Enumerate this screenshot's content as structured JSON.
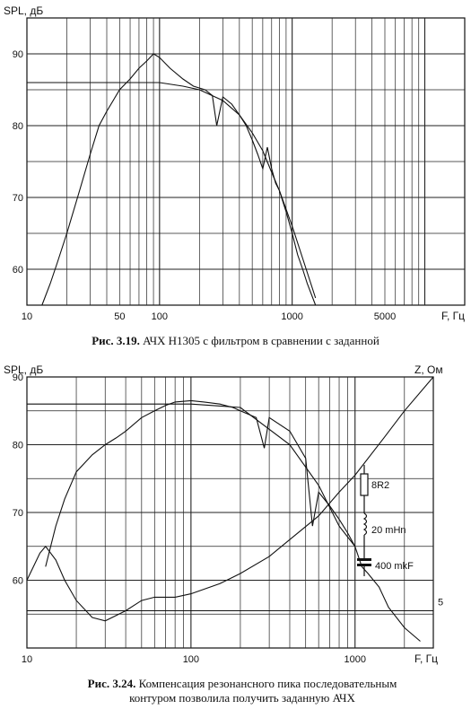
{
  "chart_data": [
    {
      "type": "line",
      "xscale": "log",
      "ylabel": "SPL, дБ",
      "xlabel": "F, Гц",
      "xlim": [
        10,
        20000
      ],
      "ylim": [
        55,
        95
      ],
      "x_ticks": [
        "10",
        "50",
        "100",
        "1000",
        "5000"
      ],
      "y_ticks": [
        "60",
        "70",
        "80",
        "90"
      ],
      "grid": true,
      "series": [
        {
          "x": [
            13,
            15,
            17,
            20,
            25,
            30,
            35,
            40,
            50,
            60,
            70,
            80,
            90,
            100,
            120,
            150,
            180,
            220,
            250,
            270,
            300,
            350,
            400,
            450,
            500,
            550,
            600,
            650,
            700,
            750,
            800,
            900,
            1000,
            1100,
            1200,
            1300,
            1500
          ],
          "y": [
            55,
            58,
            61,
            65,
            71,
            76,
            80,
            82,
            85,
            86.5,
            88,
            89,
            90,
            89.5,
            88,
            86.5,
            85.5,
            85,
            84.2,
            80,
            84,
            83,
            81.5,
            80,
            78,
            76,
            74,
            77,
            74,
            72,
            71,
            68,
            65,
            62,
            60,
            58,
            55
          ]
        },
        {
          "x": [
            10,
            20,
            50,
            100,
            150,
            200,
            300,
            400,
            500,
            600,
            700,
            800,
            1000,
            1200,
            1500
          ],
          "y": [
            86,
            86,
            86,
            86,
            85.5,
            85,
            83.5,
            81.5,
            79,
            76.5,
            73.5,
            71,
            66,
            61.5,
            56
          ]
        }
      ]
    },
    {
      "type": "line",
      "xscale": "log",
      "ylabel": "SPL, дБ",
      "xlabel": "F, Гц",
      "y2label": "Z, Ом",
      "xlim": [
        10,
        3000
      ],
      "ylim": [
        50,
        90
      ],
      "x_ticks": [
        "10",
        "100",
        "1000"
      ],
      "y_ticks": [
        "60",
        "70",
        "80",
        "90"
      ],
      "y2_ticks": [
        "5"
      ],
      "grid": true,
      "circuit_labels": [
        "8R2",
        "20 mHn",
        "400 mkF"
      ],
      "series": [
        {
          "x": [
            13,
            15,
            17,
            20,
            25,
            30,
            35,
            40,
            50,
            60,
            70,
            80,
            100,
            120,
            150,
            180,
            200,
            250,
            280,
            300,
            400,
            500,
            550,
            600,
            700,
            800,
            900,
            1000,
            1100,
            1200,
            1400,
            1600,
            2000,
            2500
          ],
          "y": [
            62,
            68,
            72,
            76,
            78.5,
            80,
            81,
            82,
            84,
            85,
            85.8,
            86.3,
            86.5,
            86.3,
            86,
            85.5,
            85,
            84,
            79.5,
            84,
            82,
            78,
            68,
            73,
            71,
            69,
            67,
            65,
            62,
            61,
            59,
            56,
            53,
            51
          ]
        },
        {
          "x": [
            10,
            30,
            100,
            200,
            400,
            600,
            800,
            1000
          ],
          "y": [
            86,
            86,
            86,
            85.5,
            80,
            74,
            68,
            65
          ]
        },
        {
          "x": [
            10,
            12,
            13,
            15,
            17,
            20,
            25,
            30,
            40,
            50,
            60,
            80,
            100,
            150,
            200,
            300,
            400,
            600,
            800,
            1000,
            1500,
            2000,
            3000
          ],
          "y": [
            60,
            64,
            65,
            63,
            60,
            57,
            54.5,
            54,
            55.5,
            57,
            57.5,
            57.5,
            58,
            59.5,
            61,
            63.5,
            66,
            69.5,
            73,
            75.5,
            81,
            85,
            90
          ]
        },
        {
          "x": [
            10,
            3000
          ],
          "y": [
            55.5,
            55.5
          ]
        }
      ]
    }
  ],
  "captions": {
    "fig1_bold": "Рис. 3.19.",
    "fig1_text": " АЧХ Н1305 с фильтром в сравнении с заданной",
    "fig2_bold": "Рис. 3.24.",
    "fig2_text1": " Компенсация резонансного пика последовательным",
    "fig2_text2": "контуром позволила получить заданную АЧХ"
  }
}
